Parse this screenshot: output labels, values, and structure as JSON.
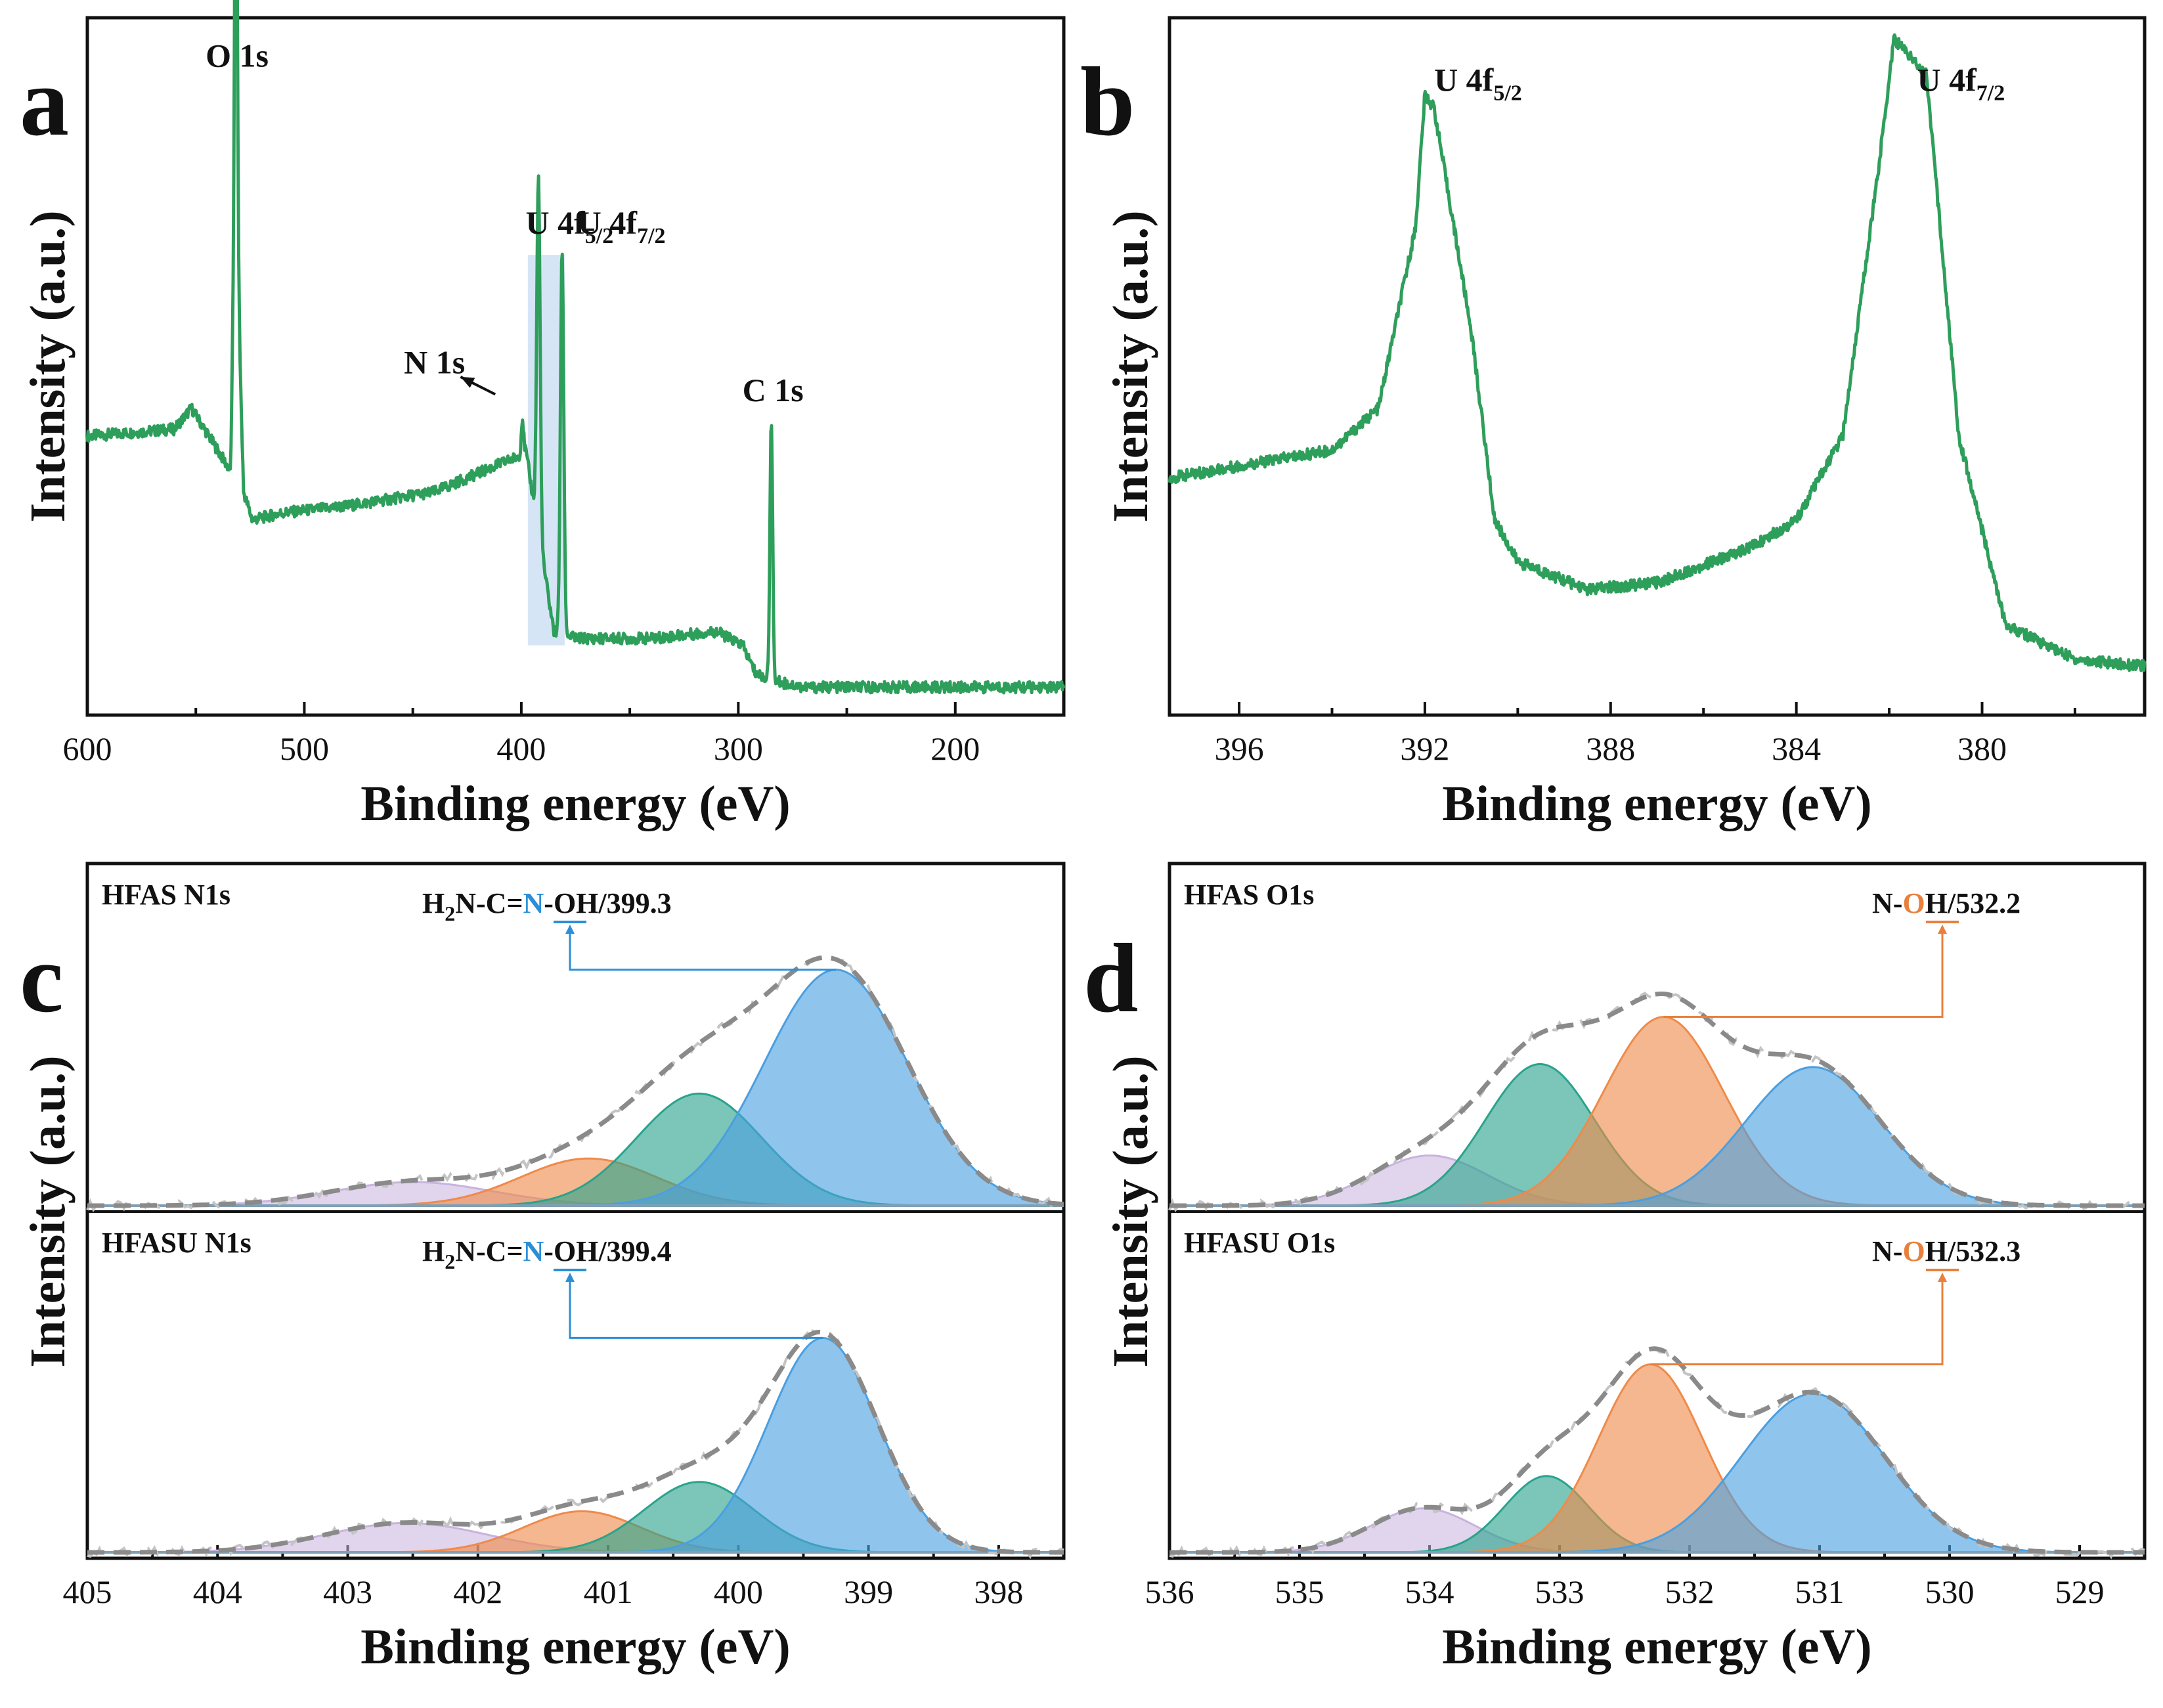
{
  "colors": {
    "survey_line": "#2e9e5b",
    "highlight_box": "#cfe0f5",
    "component_blue": "#4a9fe0",
    "component_teal": "#2aa38c",
    "component_orange": "#ef8a4a",
    "component_purple": "#c8b3df",
    "envelope": "#8a8a8a",
    "annotation_blue": "#2b8fd8",
    "annotation_orange": "#e8803d"
  },
  "chart_data": [
    {
      "id": "a",
      "panel_label": "a",
      "type": "line",
      "xlabel": "Binding energy (eV)",
      "ylabel": "Intensity (a.u.)",
      "xlim": [
        600,
        150
      ],
      "ylim": [
        0,
        100
      ],
      "xticks": [
        600,
        500,
        400,
        300,
        200
      ],
      "baseline": [
        [
          600,
          40
        ],
        [
          560,
          41
        ],
        [
          552,
          44
        ],
        [
          540,
          38
        ],
        [
          534,
          35
        ],
        [
          532.5,
          60
        ],
        [
          531.5,
          89
        ],
        [
          530.5,
          60
        ],
        [
          528,
          32
        ],
        [
          524,
          28
        ],
        [
          510,
          29
        ],
        [
          480,
          30
        ],
        [
          440,
          32
        ],
        [
          410,
          36
        ],
        [
          402,
          37
        ],
        [
          398,
          38
        ],
        [
          385,
          12
        ],
        [
          375,
          11
        ],
        [
          340,
          11
        ],
        [
          310,
          12
        ],
        [
          298,
          10
        ],
        [
          292,
          6
        ],
        [
          285,
          5
        ],
        [
          270,
          4
        ],
        [
          240,
          4
        ],
        [
          200,
          4
        ],
        [
          150,
          4
        ]
      ],
      "peaks": [
        {
          "center": 531.5,
          "height": 51,
          "width": 1.6
        },
        {
          "center": 399.5,
          "height": 5,
          "width": 1.2
        },
        {
          "center": 392.1,
          "height": 51,
          "width": 1.8
        },
        {
          "center": 381.2,
          "height": 55,
          "width": 1.8
        },
        {
          "center": 284.8,
          "height": 37,
          "width": 1.5
        }
      ],
      "peak_labels": [
        {
          "text": "O 1s",
          "x": 531,
          "y": 93
        },
        {
          "text": "N 1s",
          "x": 440,
          "y": 49
        },
        {
          "text": "C 1s",
          "x": 284,
          "y": 45
        }
      ],
      "highlight_range": [
        397,
        380
      ],
      "highlight_y": [
        10,
        66
      ],
      "u_label_left": {
        "main": "U  4f",
        "sub": "5/2",
        "x": 398,
        "y": 69
      },
      "u_label_right": {
        "main": "U  4f",
        "sub": "7/2",
        "x": 374,
        "y": 69
      },
      "arrow": {
        "from": [
          412,
          46
        ],
        "to": [
          428,
          48.5
        ]
      }
    },
    {
      "id": "b",
      "panel_label": "b",
      "type": "line",
      "xlabel": "Binding energy (eV)",
      "ylabel": "Intensity (a.u.)",
      "xlim": [
        397.5,
        376.5
      ],
      "ylim": [
        0,
        100
      ],
      "xticks": [
        396,
        392,
        388,
        384,
        380
      ],
      "baseline": [
        [
          397.5,
          34
        ],
        [
          394,
          38
        ],
        [
          393,
          44
        ],
        [
          392.2,
          70
        ],
        [
          392,
          89
        ],
        [
          391.8,
          87
        ],
        [
          391,
          55
        ],
        [
          390.5,
          28
        ],
        [
          390,
          22
        ],
        [
          388.5,
          18
        ],
        [
          387,
          19
        ],
        [
          385,
          24
        ],
        [
          384,
          28
        ],
        [
          383,
          40
        ],
        [
          382.2,
          80
        ],
        [
          381.9,
          97
        ],
        [
          381.2,
          92
        ],
        [
          380.5,
          40
        ],
        [
          379.5,
          13
        ],
        [
          378,
          8
        ],
        [
          376.5,
          7
        ]
      ],
      "peaks": [],
      "u_label_left": {
        "main": "U  4f",
        "sub": "5/2",
        "x": 391.8,
        "y": 89.5
      },
      "u_label_right": {
        "main": "U  4f",
        "sub": "7/2",
        "x": 381.4,
        "y": 89.5
      }
    },
    {
      "id": "c",
      "panel_label": "c",
      "type": "area",
      "xlabel": "Binding energy (eV)",
      "ylabel": "Intensity (a.u.)",
      "xlim": [
        405,
        397.5
      ],
      "ylim": [
        0,
        100
      ],
      "xticks": [
        405,
        404,
        403,
        402,
        401,
        400,
        399,
        398
      ],
      "subplots": [
        {
          "title": "HFAS N1s",
          "annotation": {
            "prefix": "H",
            "prefix_sub": "2",
            "mid": "N-C=",
            "element": "N",
            "suffix": "-OH/399.3"
          },
          "annotation_peak_x": 399.25,
          "annotation_peak_y": 82,
          "components": [
            {
              "name": "purple",
              "center": 402.5,
              "amp": 8,
              "sigma": 0.62
            },
            {
              "name": "orange",
              "center": 401.15,
              "amp": 16,
              "sigma": 0.52
            },
            {
              "name": "teal",
              "center": 400.3,
              "amp": 38,
              "sigma": 0.48
            },
            {
              "name": "blue",
              "center": 399.25,
              "amp": 80,
              "sigma": 0.55
            }
          ],
          "baseline": 2
        },
        {
          "title": "HFASU N1s",
          "annotation": {
            "prefix": "H",
            "prefix_sub": "2",
            "mid": "N-C=",
            "element": "N",
            "suffix": "-OH/399.4"
          },
          "annotation_peak_x": 399.35,
          "annotation_peak_y": 75,
          "components": [
            {
              "name": "purple",
              "center": 402.55,
              "amp": 10,
              "sigma": 0.62
            },
            {
              "name": "orange",
              "center": 401.2,
              "amp": 14,
              "sigma": 0.45
            },
            {
              "name": "teal",
              "center": 400.3,
              "amp": 24,
              "sigma": 0.42
            },
            {
              "name": "blue",
              "center": 399.35,
              "amp": 73,
              "sigma": 0.42
            }
          ],
          "baseline": 2
        }
      ]
    },
    {
      "id": "d",
      "panel_label": "d",
      "type": "area",
      "xlabel": "Binding energy (eV)",
      "ylabel": "Intensity (a.u.)",
      "xlim": [
        536,
        528.5
      ],
      "ylim": [
        0,
        100
      ],
      "xticks": [
        536,
        535,
        534,
        533,
        532,
        531,
        530,
        529
      ],
      "subplots": [
        {
          "title": "HFAS O1s",
          "annotation": {
            "prefix": "",
            "prefix_sub": "",
            "mid": "N-",
            "element": "O",
            "suffix": "H/532.2"
          },
          "annotation_peak_x": 532.2,
          "annotation_peak_y": 66,
          "components": [
            {
              "name": "purple",
              "center": 534.0,
              "amp": 17,
              "sigma": 0.45
            },
            {
              "name": "teal",
              "center": 533.15,
              "amp": 48,
              "sigma": 0.42
            },
            {
              "name": "orange",
              "center": 532.2,
              "amp": 64,
              "sigma": 0.46
            },
            {
              "name": "blue",
              "center": 531.05,
              "amp": 47,
              "sigma": 0.52
            }
          ],
          "baseline": 2
        },
        {
          "title": "HFASU O1s",
          "annotation": {
            "prefix": "",
            "prefix_sub": "",
            "mid": "N-",
            "element": "O",
            "suffix": "H/532.3"
          },
          "annotation_peak_x": 532.3,
          "annotation_peak_y": 66,
          "components": [
            {
              "name": "purple",
              "center": 534.05,
              "amp": 15,
              "sigma": 0.4
            },
            {
              "name": "teal",
              "center": 533.1,
              "amp": 26,
              "sigma": 0.32
            },
            {
              "name": "orange",
              "center": 532.3,
              "amp": 64,
              "sigma": 0.4
            },
            {
              "name": "blue",
              "center": 531.05,
              "amp": 54,
              "sigma": 0.55
            }
          ],
          "baseline": 2
        }
      ]
    }
  ]
}
